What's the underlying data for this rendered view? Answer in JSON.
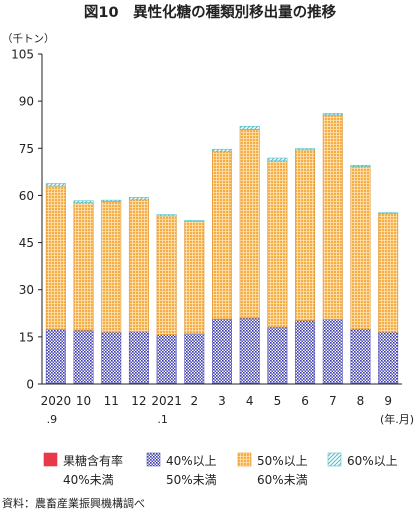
{
  "chart_data": {
    "type": "bar",
    "stacked": true,
    "title": "図10　異性化糖の種類別移出量の推移",
    "ylabel": "（千トン）",
    "xlabel": "(年.月)",
    "ylim": [
      0,
      105
    ],
    "yticks": [
      0,
      15,
      30,
      45,
      60,
      75,
      90,
      105
    ],
    "grid": false,
    "legend_position": "bottom",
    "categories": [
      {
        "line1": "2020",
        "line2": ".9"
      },
      {
        "line1": "10",
        "line2": ""
      },
      {
        "line1": "11",
        "line2": ""
      },
      {
        "line1": "12",
        "line2": ""
      },
      {
        "line1": "2021",
        "line2": ".1"
      },
      {
        "line1": "2",
        "line2": ""
      },
      {
        "line1": "3",
        "line2": ""
      },
      {
        "line1": "4",
        "line2": ""
      },
      {
        "line1": "5",
        "line2": ""
      },
      {
        "line1": "6",
        "line2": ""
      },
      {
        "line1": "7",
        "line2": ""
      },
      {
        "line1": "8",
        "line2": ""
      },
      {
        "line1": "9",
        "line2": ""
      }
    ],
    "series": [
      {
        "name_line1": "果糖含有率",
        "name_line2": "40%未満",
        "color": "#e8394b",
        "pattern": "solid",
        "values": [
          0.2,
          0.2,
          0.2,
          0.2,
          0.2,
          0.2,
          0.2,
          0.2,
          0.2,
          0.2,
          0.2,
          0.2,
          0.2
        ]
      },
      {
        "name_line1": "40%以上",
        "name_line2": "50%未満",
        "color": "#3a3aa8",
        "pattern": "dots",
        "values": [
          17.1,
          16.9,
          16.3,
          16.4,
          15.5,
          15.8,
          20.5,
          20.8,
          17.9,
          20.0,
          20.3,
          17.3,
          16.3
        ]
      },
      {
        "name_line1": "50%以上",
        "name_line2": "60%未満",
        "color": "#f5a93c",
        "pattern": "grid",
        "values": [
          45.7,
          40.6,
          41.6,
          42.0,
          37.8,
          35.8,
          53.2,
          60.0,
          52.9,
          54.3,
          65.1,
          51.7,
          37.7
        ]
      },
      {
        "name_line1": "60%以上",
        "name_line2": "",
        "color": "#4dc2c8",
        "pattern": "hatch",
        "values": [
          0.8,
          0.6,
          0.4,
          0.8,
          0.4,
          0.2,
          0.8,
          1.0,
          0.9,
          0.4,
          0.5,
          0.4,
          0.3
        ]
      }
    ]
  },
  "source_note": "資料：農畜産業振興機構調べ"
}
